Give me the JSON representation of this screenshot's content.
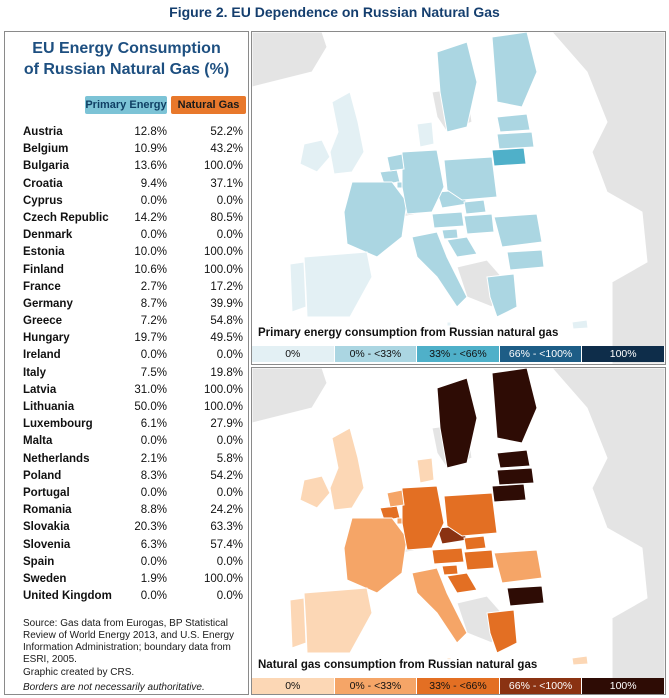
{
  "figure_title": "Figure 2. EU Dependence on Russian Natural Gas",
  "table": {
    "title_line1": "EU Energy Consumption",
    "title_line2": "of Russian Natural Gas (%)",
    "header_primary": "Primary Energy",
    "header_gas": "Natural Gas",
    "rows": [
      {
        "country": "Austria",
        "pe": "12.8%",
        "ng": "52.2%"
      },
      {
        "country": "Belgium",
        "pe": "10.9%",
        "ng": "43.2%"
      },
      {
        "country": "Bulgaria",
        "pe": "13.6%",
        "ng": "100.0%"
      },
      {
        "country": "Croatia",
        "pe": "9.4%",
        "ng": "37.1%"
      },
      {
        "country": "Cyprus",
        "pe": "0.0%",
        "ng": "0.0%"
      },
      {
        "country": "Czech Republic",
        "pe": "14.2%",
        "ng": "80.5%"
      },
      {
        "country": "Denmark",
        "pe": "0.0%",
        "ng": "0.0%"
      },
      {
        "country": "Estonia",
        "pe": "10.0%",
        "ng": "100.0%"
      },
      {
        "country": "Finland",
        "pe": "10.6%",
        "ng": "100.0%"
      },
      {
        "country": "France",
        "pe": "2.7%",
        "ng": "17.2%"
      },
      {
        "country": "Germany",
        "pe": "8.7%",
        "ng": "39.9%"
      },
      {
        "country": "Greece",
        "pe": "7.2%",
        "ng": "54.8%"
      },
      {
        "country": "Hungary",
        "pe": "19.7%",
        "ng": "49.5%"
      },
      {
        "country": "Ireland",
        "pe": "0.0%",
        "ng": "0.0%"
      },
      {
        "country": "Italy",
        "pe": "7.5%",
        "ng": "19.8%"
      },
      {
        "country": "Latvia",
        "pe": "31.0%",
        "ng": "100.0%"
      },
      {
        "country": "Lithuania",
        "pe": "50.0%",
        "ng": "100.0%"
      },
      {
        "country": "Luxembourg",
        "pe": "6.1%",
        "ng": "27.9%"
      },
      {
        "country": "Malta",
        "pe": "0.0%",
        "ng": "0.0%"
      },
      {
        "country": "Netherlands",
        "pe": "2.1%",
        "ng": "5.8%"
      },
      {
        "country": "Poland",
        "pe": "8.3%",
        "ng": "54.2%"
      },
      {
        "country": "Portugal",
        "pe": "0.0%",
        "ng": "0.0%"
      },
      {
        "country": "Romania",
        "pe": "8.8%",
        "ng": "24.2%"
      },
      {
        "country": "Slovakia",
        "pe": "20.3%",
        "ng": "63.3%"
      },
      {
        "country": "Slovenia",
        "pe": "6.3%",
        "ng": "57.4%"
      },
      {
        "country": "Spain",
        "pe": "0.0%",
        "ng": "0.0%"
      },
      {
        "country": "Sweden",
        "pe": "1.9%",
        "ng": "100.0%"
      },
      {
        "country": "United Kingdom",
        "pe": "0.0%",
        "ng": "0.0%"
      }
    ]
  },
  "source_text": "Source: Gas data from Eurogas, BP Statistical Review of World Energy 2013, and U.S. Energy Information Administration; boundary data from ESRI, 2005.",
  "credit_text": "Graphic created by CRS.",
  "border_note": "Borders are not necessarily authoritative.",
  "maps": {
    "primary": {
      "caption": "Primary energy consumption from Russian natural gas",
      "legend": [
        {
          "label": "0%",
          "color": "#e3f0f4",
          "text": "#111"
        },
        {
          "label": "0% - <33%",
          "color": "#abd6e2",
          "text": "#111"
        },
        {
          "label": "33% - <66%",
          "color": "#4fb0c9",
          "text": "#111"
        },
        {
          "label": "66% - <100%",
          "color": "#1d5d86",
          "text": "#ffffff"
        },
        {
          "label": "100%",
          "color": "#0e2d4a",
          "text": "#ffffff"
        }
      ]
    },
    "gas": {
      "caption": "Natural gas consumption from Russian natural gas",
      "legend": [
        {
          "label": "0%",
          "color": "#fcd7b5",
          "text": "#111"
        },
        {
          "label": "0% - <33%",
          "color": "#f5a567",
          "text": "#111"
        },
        {
          "label": "33% - <66%",
          "color": "#e36f23",
          "text": "#111"
        },
        {
          "label": "66% - <100%",
          "color": "#8a3212",
          "text": "#ffffff"
        },
        {
          "label": "100%",
          "color": "#2e0c05",
          "text": "#ffffff"
        }
      ]
    }
  },
  "colors": {
    "sea_top": "#ffffff",
    "nonEU": "#e4e4e4",
    "border": "#ffffff"
  }
}
